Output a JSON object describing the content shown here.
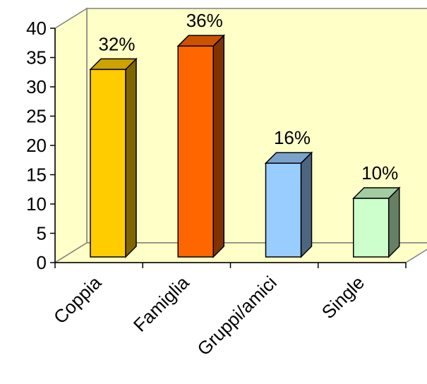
{
  "chart_data": {
    "type": "bar",
    "title": "",
    "xlabel": "",
    "ylabel": "",
    "categories": [
      "Coppia",
      "Famiglia",
      "Gruppi/amici",
      "Single"
    ],
    "values": [
      32,
      36,
      16,
      10
    ],
    "data_labels": [
      "32%",
      "36%",
      "16%",
      "10%"
    ],
    "yticks": [
      "0",
      "5",
      "10",
      "15",
      "20",
      "25",
      "30",
      "35",
      "40"
    ],
    "ylim": [
      0,
      40
    ],
    "grid": false,
    "legend": "none",
    "style": "3d-columns",
    "colors": {
      "wall": "#ffffc8",
      "bars": [
        {
          "front": "#ffcc00",
          "side": "#806600",
          "top": "#cca300"
        },
        {
          "front": "#ff6600",
          "side": "#803300",
          "top": "#cc5200"
        },
        {
          "front": "#99ccff",
          "side": "#4d6680",
          "top": "#7aa3cc"
        },
        {
          "front": "#ccffcc",
          "side": "#668066",
          "top": "#a3cca3"
        }
      ]
    }
  }
}
